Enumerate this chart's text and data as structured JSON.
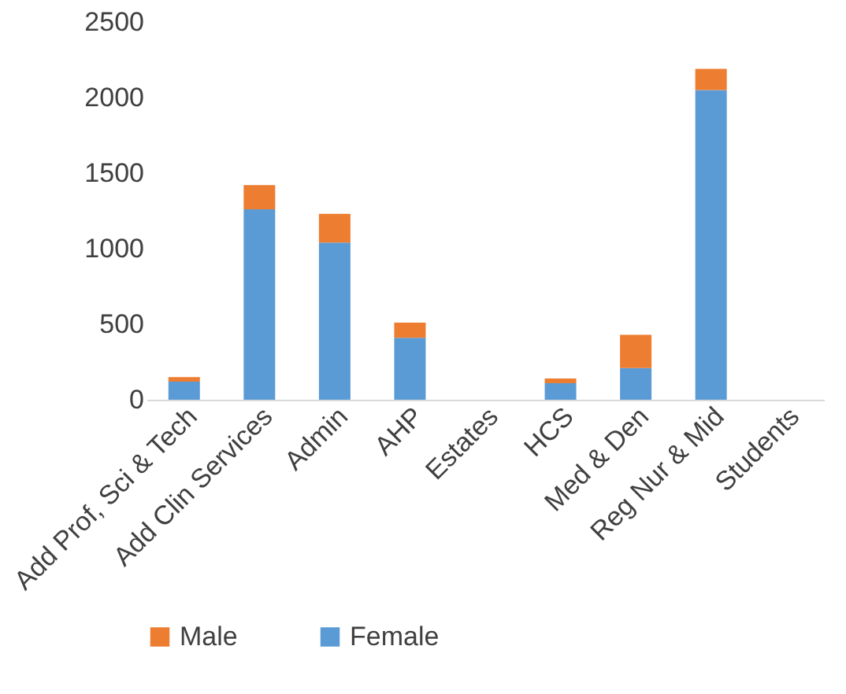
{
  "chart_data": {
    "type": "bar",
    "stacked": true,
    "categories": [
      "Add Prof, Sci & Tech",
      "Add Clin Services",
      "Admin",
      "AHP",
      "Estates",
      "HCS",
      "Med & Den",
      "Reg Nur & Mid",
      "Students"
    ],
    "series": [
      {
        "name": "Female",
        "color": "#5b9bd5",
        "values": [
          120,
          1260,
          1040,
          410,
          0,
          110,
          210,
          2050,
          0
        ]
      },
      {
        "name": "Male",
        "color": "#ed7d31",
        "values": [
          30,
          160,
          190,
          100,
          0,
          30,
          220,
          140,
          0
        ]
      }
    ],
    "ylim": [
      0,
      2500
    ],
    "yticks": [
      0,
      500,
      1000,
      1500,
      2000,
      2500
    ],
    "grid": false,
    "legend": "bottom"
  }
}
